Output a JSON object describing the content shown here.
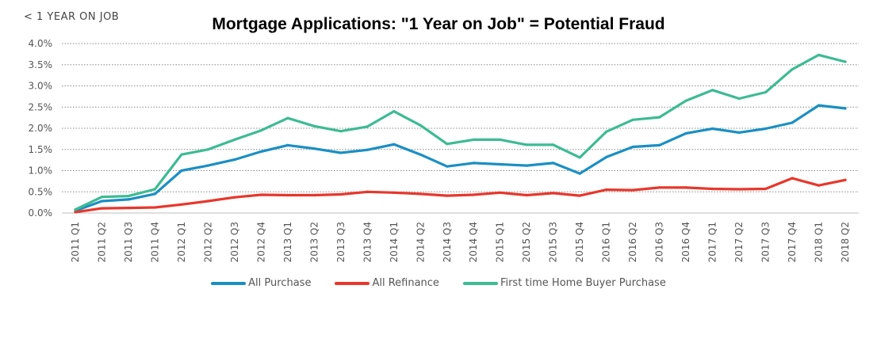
{
  "chart_data": {
    "type": "line",
    "title": "Mortgage Applications: \"1 Year on Job\" = Potential Fraud",
    "ylabel": "< 1 YEAR ON JOB",
    "xlabel": "",
    "ylim": [
      0,
      4.0
    ],
    "yticks": [
      "0.0%",
      "0.5%",
      "1.0%",
      "1.5%",
      "2.0%",
      "2.5%",
      "3.0%",
      "3.5%",
      "4.0%"
    ],
    "grid": true,
    "legend_position": "bottom",
    "categories": [
      "2011 Q1",
      "2011 Q2",
      "2011 Q3",
      "2011 Q4",
      "2012 Q1",
      "2012 Q2",
      "2012 Q3",
      "2012 Q4",
      "2013 Q1",
      "2013 Q2",
      "2013 Q3",
      "2013 Q4",
      "2014 Q1",
      "2014 Q2",
      "2014 Q3",
      "2014 Q4",
      "2015 Q1",
      "2015 Q2",
      "2015 Q3",
      "2015 Q4",
      "2016 Q1",
      "2016 Q2",
      "2016 Q3",
      "2016 Q4",
      "2017 Q1",
      "2017 Q2",
      "2017 Q3",
      "2017 Q4",
      "2018 Q1",
      "2018 Q2"
    ],
    "series": [
      {
        "name": "All Purchase",
        "color": "#1a8fc4",
        "values": [
          0.05,
          0.28,
          0.32,
          0.45,
          1.0,
          1.12,
          1.26,
          1.45,
          1.6,
          1.52,
          1.42,
          1.49,
          1.62,
          1.38,
          1.1,
          1.18,
          1.15,
          1.12,
          1.18,
          0.93,
          1.32,
          1.56,
          1.6,
          1.88,
          1.99,
          1.9,
          1.99,
          2.13,
          2.54,
          2.47
        ]
      },
      {
        "name": "All Refinance",
        "color": "#e8372c",
        "values": [
          0.02,
          0.11,
          0.12,
          0.13,
          0.2,
          0.28,
          0.37,
          0.43,
          0.42,
          0.42,
          0.44,
          0.5,
          0.48,
          0.45,
          0.41,
          0.43,
          0.48,
          0.42,
          0.47,
          0.41,
          0.55,
          0.54,
          0.6,
          0.6,
          0.57,
          0.56,
          0.57,
          0.82,
          0.65,
          0.78
        ]
      },
      {
        "name": "First time Home Buyer Purchase",
        "color": "#3dbb92",
        "values": [
          0.08,
          0.38,
          0.4,
          0.56,
          1.38,
          1.5,
          1.73,
          1.95,
          2.24,
          2.05,
          1.93,
          2.04,
          2.4,
          2.07,
          1.63,
          1.73,
          1.73,
          1.61,
          1.61,
          1.31,
          1.92,
          2.2,
          2.26,
          2.65,
          2.9,
          2.7,
          2.85,
          3.39,
          3.73,
          3.57
        ]
      }
    ]
  }
}
